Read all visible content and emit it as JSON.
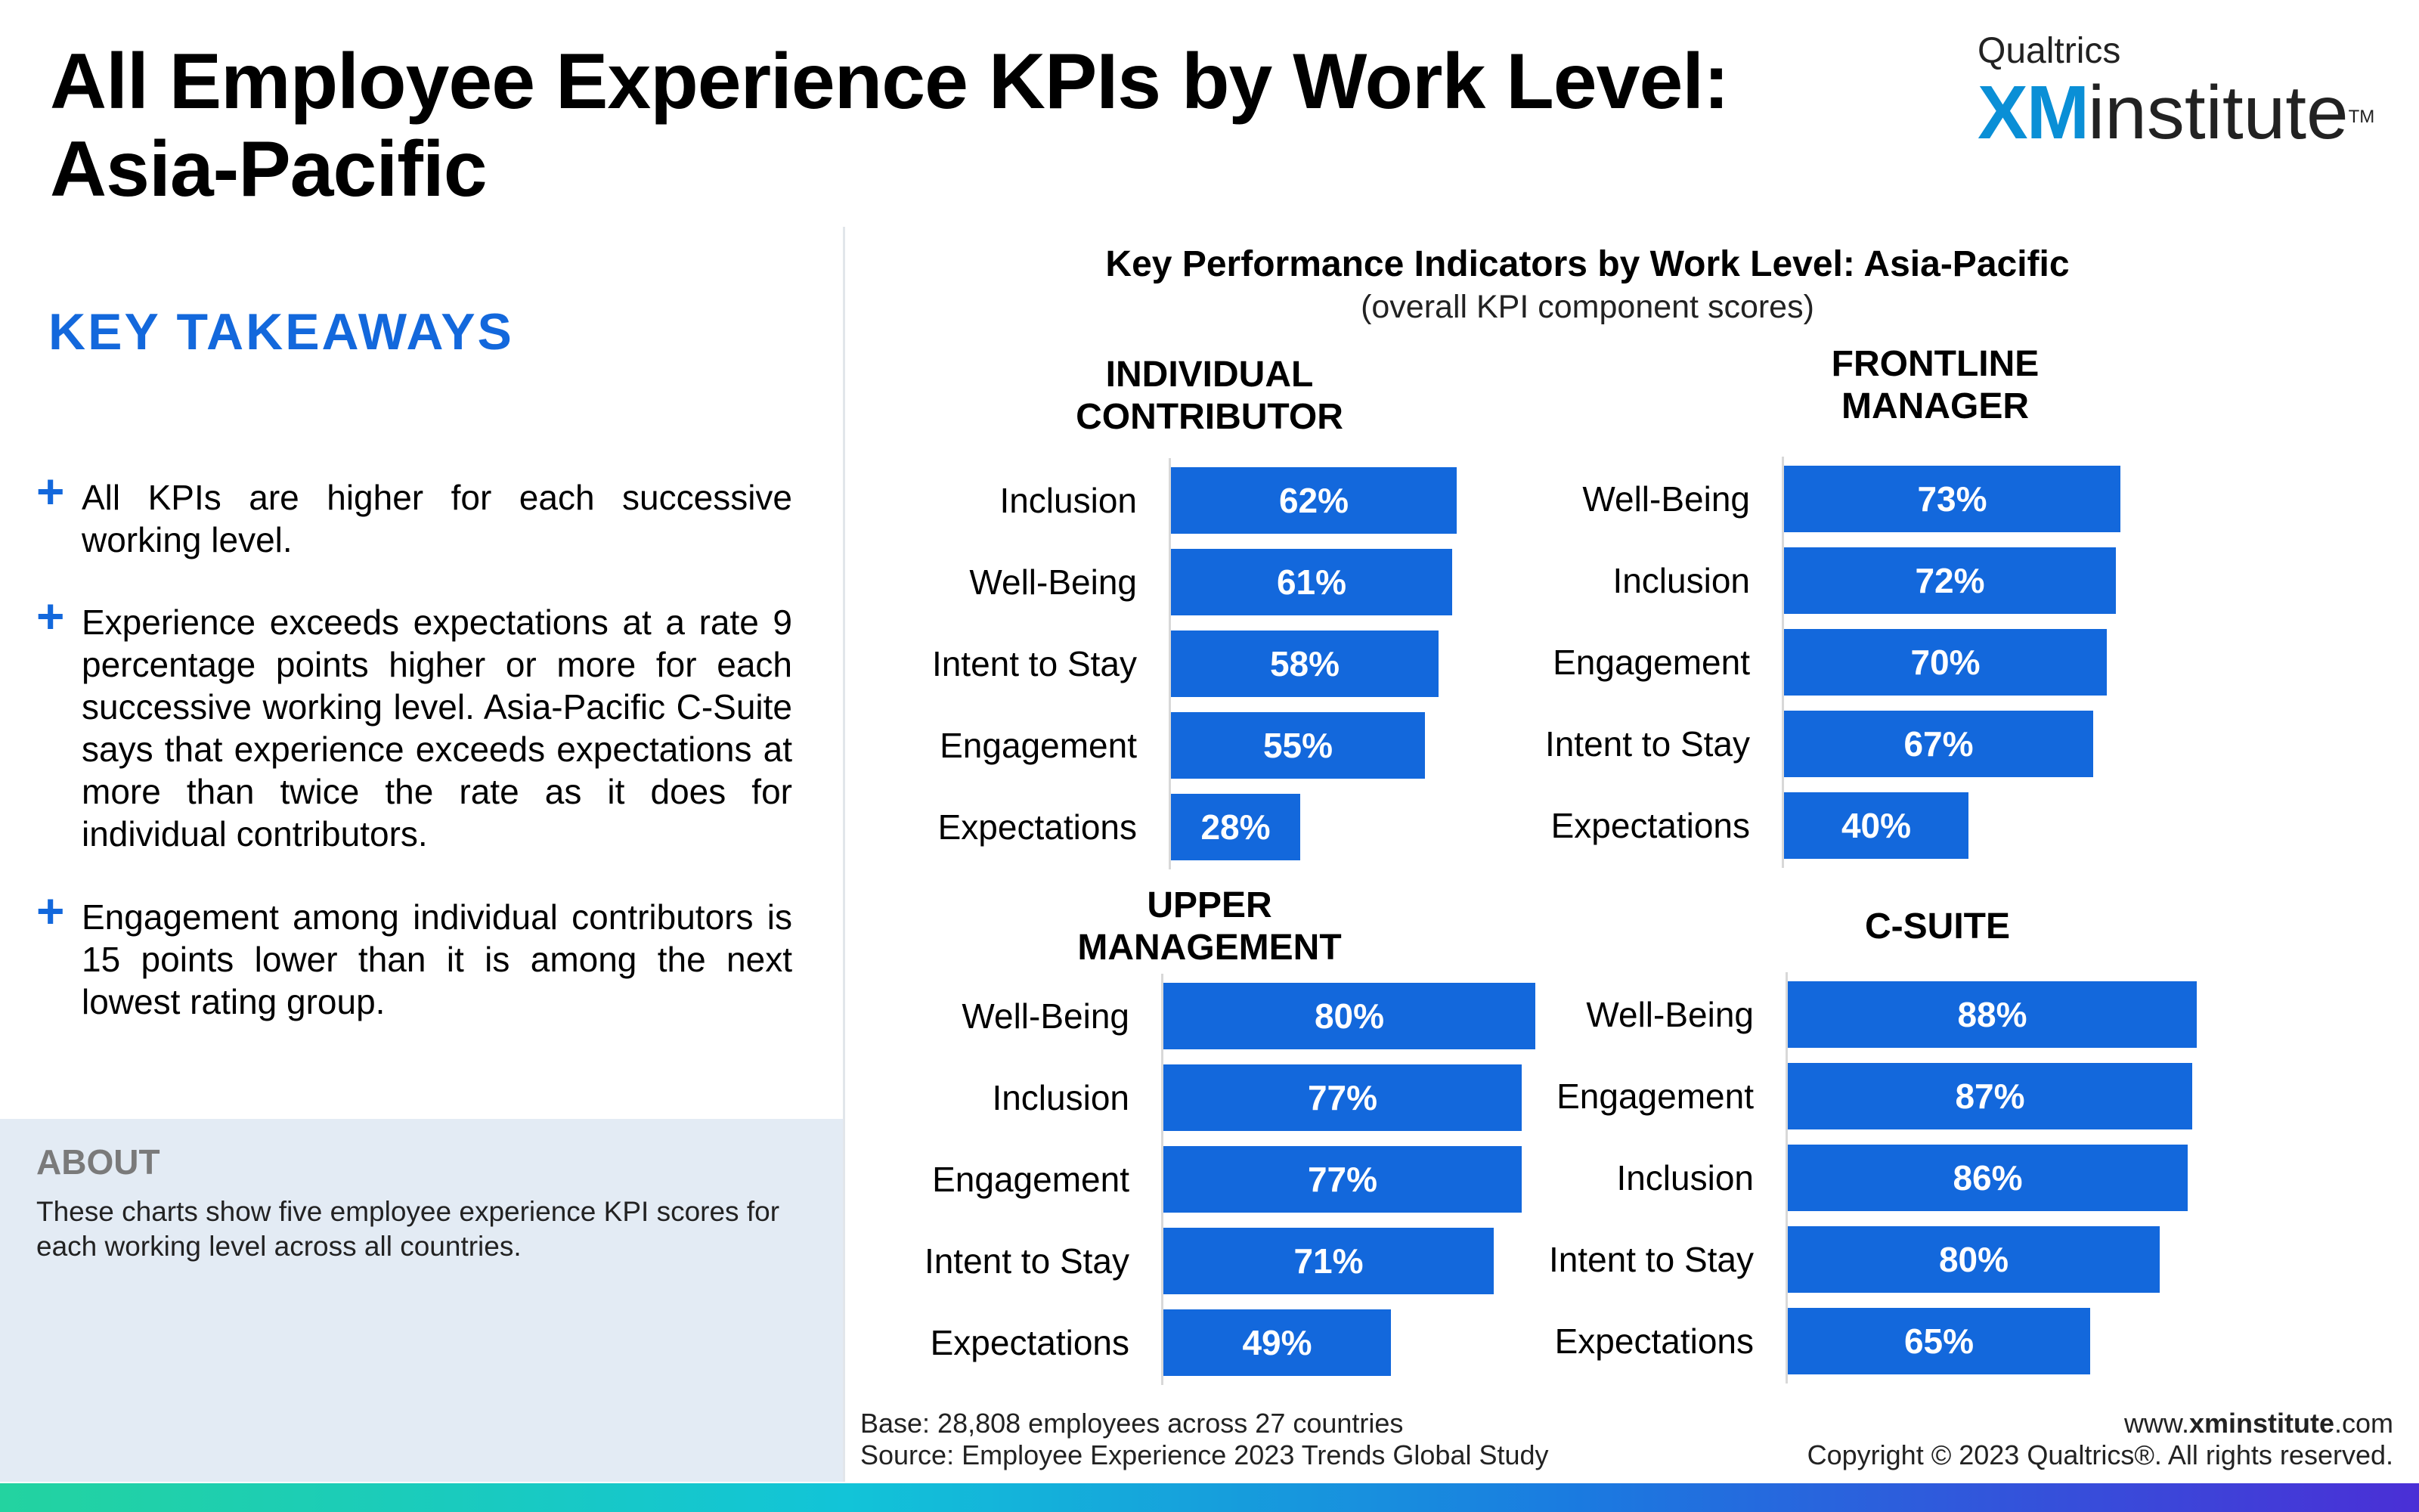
{
  "header": {
    "title_line1": "All Employee Experience KPIs by Work Level:",
    "title_line2": "Asia-Pacific",
    "logo_top": "Qualtrics",
    "logo_xm": "XM",
    "logo_institute": "institute",
    "logo_tm": "TM"
  },
  "takeaways": {
    "heading": "KEY TAKEAWAYS",
    "bullet_icon": "plus-icon",
    "items": [
      "All KPIs are higher for each successive working level.",
      "Experience exceeds expectations at a rate 9 percentage points higher or more for each successive working level. Asia-Pacific C-Suite says that experience exceeds expectations at more than twice the rate as it does for individual contributors.",
      "Engagement among individual contributors is 15 points lower than it is among the next lowest rating group."
    ]
  },
  "about": {
    "heading": "ABOUT",
    "text": "These charts show five employee experience KPI scores for each working level across all countries."
  },
  "footer": {
    "base": "Base: 28,808 employees across 27 countries",
    "source": "Source: Employee Experience 2023 Trends Global Study",
    "website_prefix": "www.",
    "website_bold": "xminstitute",
    "website_suffix": ".com",
    "copyright": "Copyright © 2023 Qualtrics®. All rights reserved."
  },
  "colors": {
    "bar": "#1368dc",
    "accent": "#1368dc",
    "about_bg": "#e3ebf4"
  },
  "chart_data": {
    "type": "bar",
    "orientation": "horizontal",
    "title": "Key Performance Indicators by Work Level: Asia-Pacific",
    "subtitle": "(overall KPI component scores)",
    "value_suffix": "%",
    "xlim": [
      0,
      100
    ],
    "panels": [
      {
        "title": "INDIVIDUAL\nCONTRIBUTOR",
        "categories": [
          "Inclusion",
          "Well-Being",
          "Intent to Stay",
          "Engagement",
          "Expectations"
        ],
        "values": [
          62,
          61,
          58,
          55,
          28
        ],
        "labels": [
          "62%",
          "61%",
          "58%",
          "55%",
          "28%"
        ]
      },
      {
        "title": "FRONTLINE\nMANAGER",
        "categories": [
          "Well-Being",
          "Inclusion",
          "Engagement",
          "Intent to Stay",
          "Expectations"
        ],
        "values": [
          73,
          72,
          70,
          67,
          40
        ],
        "labels": [
          "73%",
          "72%",
          "70%",
          "67%",
          "40%"
        ]
      },
      {
        "title": "UPPER\nMANAGEMENT",
        "categories": [
          "Well-Being",
          "Inclusion",
          "Engagement",
          "Intent to Stay",
          "Expectations"
        ],
        "values": [
          80,
          77,
          77,
          71,
          49
        ],
        "labels": [
          "80%",
          "77%",
          "77%",
          "71%",
          "49%"
        ]
      },
      {
        "title": "C-SUITE",
        "categories": [
          "Well-Being",
          "Engagement",
          "Inclusion",
          "Intent to Stay",
          "Expectations"
        ],
        "values": [
          88,
          87,
          86,
          80,
          65
        ],
        "labels": [
          "88%",
          "87%",
          "86%",
          "80%",
          "65%"
        ]
      }
    ]
  }
}
